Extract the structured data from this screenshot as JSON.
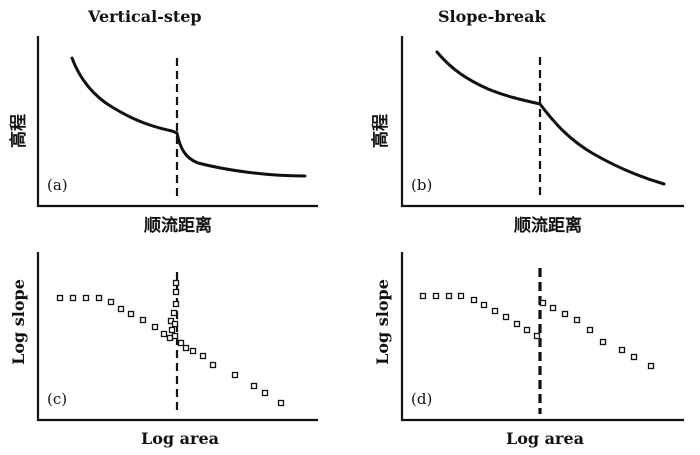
{
  "titles": {
    "a": "Vertical-step",
    "b": "Slope-break"
  },
  "labels": {
    "elevation": "高程",
    "downstream_distance": "顺流距离",
    "log_slope": "Log slope",
    "log_area": "Log area"
  },
  "panels": {
    "a": "(a)",
    "b": "(b)",
    "c": "(c)",
    "d": "(d)"
  }
}
